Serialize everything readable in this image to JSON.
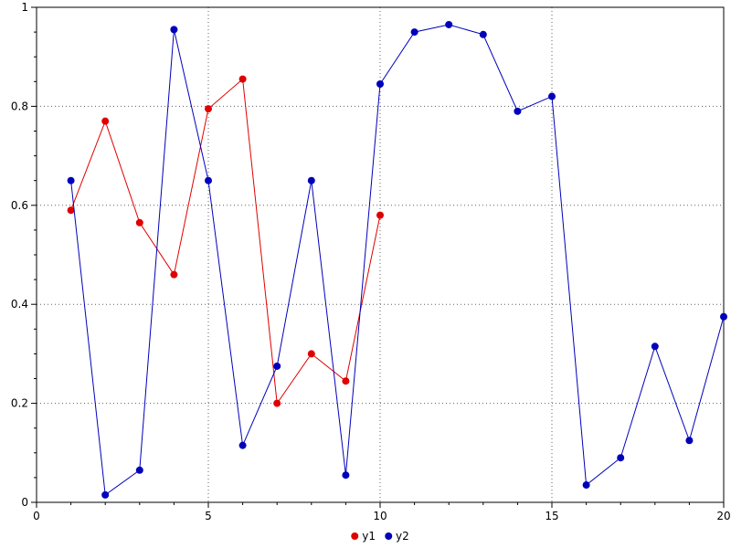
{
  "figure": {
    "background": "#ffffff",
    "frame_color": "#000000",
    "grid_color": "#606060",
    "tick_label_color": "#000000"
  },
  "legend": {
    "items": [
      {
        "label": "y1",
        "color": "#e00000"
      },
      {
        "label": "y2",
        "color": "#0000bb"
      }
    ]
  },
  "chart_data": {
    "type": "line",
    "title": "",
    "xlabel": "",
    "ylabel": "",
    "xlim": [
      0,
      20
    ],
    "ylim": [
      0,
      1
    ],
    "xticks": [
      0,
      5,
      10,
      15,
      20
    ],
    "xtick_labels": [
      "0",
      "5",
      "10",
      "15",
      "20"
    ],
    "yticks": [
      0,
      0.2,
      0.4,
      0.6,
      0.8,
      1
    ],
    "ytick_labels": [
      "0",
      "0.2",
      "0.4",
      "0.6",
      "0.8",
      "1"
    ],
    "x_minor_step": 1,
    "y_minor_step": 0.05,
    "grid": true,
    "legend_position": "bottom-center",
    "series": [
      {
        "name": "y1",
        "color": "#e00000",
        "marker": "circle",
        "x": [
          1,
          2,
          3,
          4,
          5,
          6,
          7,
          8,
          9,
          10
        ],
        "values": [
          0.59,
          0.77,
          0.565,
          0.46,
          0.795,
          0.855,
          0.2,
          0.3,
          0.245,
          0.58
        ]
      },
      {
        "name": "y2",
        "color": "#0000bb",
        "marker": "circle",
        "x": [
          1,
          2,
          3,
          4,
          5,
          6,
          7,
          8,
          9,
          10,
          11,
          12,
          13,
          14,
          15,
          16,
          17,
          18,
          19,
          20
        ],
        "values": [
          0.65,
          0.015,
          0.065,
          0.955,
          0.65,
          0.115,
          0.275,
          0.65,
          0.055,
          0.845,
          0.95,
          0.965,
          0.945,
          0.79,
          0.82,
          0.035,
          0.09,
          0.315,
          0.125,
          0.375
        ]
      }
    ]
  }
}
